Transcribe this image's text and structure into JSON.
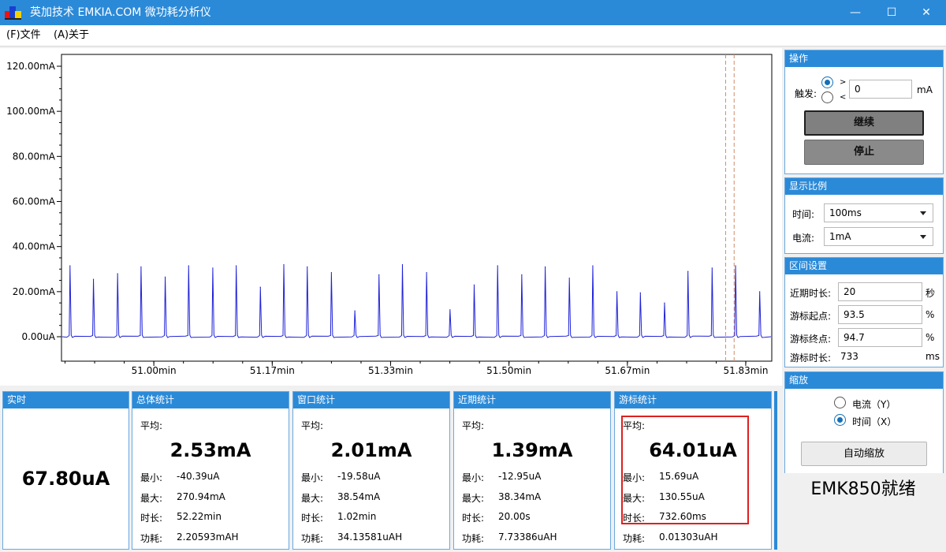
{
  "window": {
    "title": "英加技术 EMKIA.COM 微功耗分析仪",
    "minimize": "—",
    "maximize": "☐",
    "close": "✕"
  },
  "menu": [
    "(F)文件",
    "(A)关于"
  ],
  "chart_data": {
    "type": "line",
    "y_tick_labels": [
      "120.00mA",
      "100.00mA",
      "80.00mA",
      "60.00mA",
      "40.00mA",
      "20.00mA",
      "0.00uA"
    ],
    "x_tick_labels": [
      "51.00min",
      "51.17min",
      "51.33min",
      "51.50min",
      "51.67min",
      "51.83min"
    ],
    "ylim": [
      0,
      125
    ],
    "y_unit": "mA",
    "xlim": [
      50.87,
      51.87
    ],
    "x_unit": "min",
    "grid": false,
    "series": [
      {
        "color": "#1f22d8",
        "baseline": 0,
        "peaks": [
          {
            "x": 50.882,
            "y": 31.5
          },
          {
            "x": 50.915,
            "y": 25.5
          },
          {
            "x": 50.949,
            "y": 28.0
          },
          {
            "x": 50.982,
            "y": 31.0
          },
          {
            "x": 51.016,
            "y": 26.5
          },
          {
            "x": 51.049,
            "y": 31.5
          },
          {
            "x": 51.083,
            "y": 30.5
          },
          {
            "x": 51.116,
            "y": 31.5
          },
          {
            "x": 51.15,
            "y": 22.0
          },
          {
            "x": 51.183,
            "y": 32.0
          },
          {
            "x": 51.216,
            "y": 31.0
          },
          {
            "x": 51.25,
            "y": 28.5
          },
          {
            "x": 51.283,
            "y": 11.5
          },
          {
            "x": 51.317,
            "y": 27.5
          },
          {
            "x": 51.35,
            "y": 32.0
          },
          {
            "x": 51.384,
            "y": 28.5
          },
          {
            "x": 51.417,
            "y": 12.0
          },
          {
            "x": 51.451,
            "y": 23.0
          },
          {
            "x": 51.484,
            "y": 31.5
          },
          {
            "x": 51.518,
            "y": 27.5
          },
          {
            "x": 51.551,
            "y": 31.0
          },
          {
            "x": 51.585,
            "y": 26.0
          },
          {
            "x": 51.618,
            "y": 31.5
          },
          {
            "x": 51.652,
            "y": 20.0
          },
          {
            "x": 51.685,
            "y": 19.5
          },
          {
            "x": 51.719,
            "y": 15.0
          },
          {
            "x": 51.752,
            "y": 29.0
          },
          {
            "x": 51.786,
            "y": 30.5
          },
          {
            "x": 51.819,
            "y": 31.5
          },
          {
            "x": 51.853,
            "y": 20.0
          }
        ]
      }
    ],
    "cursors": {
      "color": "#d08a6a",
      "start_percent": 93.5,
      "end_percent": 94.7
    }
  },
  "operation": {
    "header": "操作",
    "trigger_label": "触发:",
    "gt": ">",
    "lt": "<",
    "trigger_value": "0",
    "unit": "mA",
    "continue_label": "继续",
    "stop_label": "停止"
  },
  "scale": {
    "header": "显示比例",
    "time_label": "时间:",
    "time_value": "100ms",
    "current_label": "电流:",
    "current_value": "1mA"
  },
  "interval": {
    "header": "区间设置",
    "recent_label": "近期时长:",
    "recent_value": "20",
    "recent_unit": "秒",
    "start_label": "游标起点:",
    "start_value": "93.5",
    "start_unit": "%",
    "end_label": "游标终点:",
    "end_value": "94.7",
    "end_unit": "%",
    "length_label": "游标时长:",
    "length_value": "733",
    "length_unit": "ms"
  },
  "zoom": {
    "header": "缩放",
    "current_option": "电流（Y）",
    "time_option": "时间（X）",
    "auto_label": "自动缩放"
  },
  "status_text": "EMK850就绪",
  "realtime": {
    "header": "实时",
    "value": "67.80uA"
  },
  "labels": {
    "avg": "平均:",
    "min": "最小:",
    "max": "最大:",
    "duration": "时长:",
    "energy": "功耗:"
  },
  "stats": {
    "total": {
      "header": "总体统计",
      "avg": "2.53mA",
      "min": "-40.39uA",
      "max": "270.94mA",
      "duration": "52.22min",
      "energy": "2.20593mAH"
    },
    "window": {
      "header": "窗口统计",
      "avg": "2.01mA",
      "min": "-19.58uA",
      "max": "38.54mA",
      "duration": "1.02min",
      "energy": "34.13581uAH"
    },
    "recent": {
      "header": "近期统计",
      "avg": "1.39mA",
      "min": "-12.95uA",
      "max": "38.34mA",
      "duration": "20.00s",
      "energy": "7.73386uAH"
    },
    "cursor": {
      "header": "游标统计",
      "avg": "64.01uA",
      "min": "15.69uA",
      "max": "130.55uA",
      "duration": "732.60ms",
      "energy": "0.01303uAH"
    }
  },
  "colors": {
    "accent": "#2b8ad8",
    "highlight_box": "#e02020"
  }
}
